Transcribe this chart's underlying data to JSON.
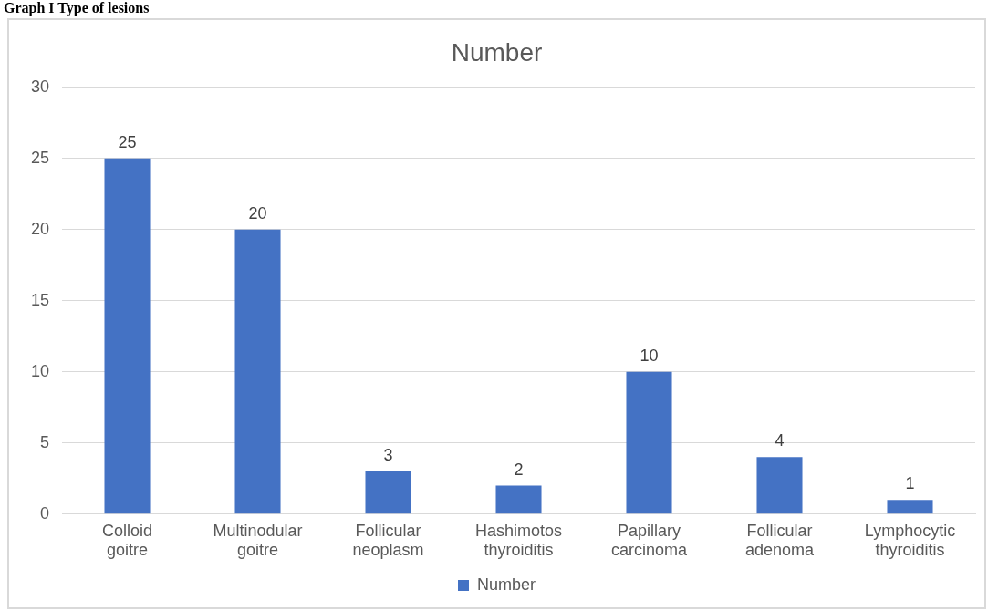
{
  "chart_data": {
    "type": "bar",
    "title": "Number",
    "annotations": [
      "Graph I Type of lesions"
    ],
    "categories": [
      "Colloid goitre",
      "Multinodular goitre",
      "Follicular neoplasm",
      "Hashimotos thyroiditis",
      "Papillary carcinoma",
      "Follicular adenoma",
      "Lymphocytic thyroiditis"
    ],
    "series": [
      {
        "name": "Number",
        "color": "#4472c4",
        "values": [
          25,
          20,
          3,
          2,
          10,
          4,
          1
        ]
      }
    ],
    "ylim": [
      0,
      30
    ],
    "yticks": [
      0,
      5,
      10,
      15,
      20,
      25,
      30
    ],
    "grid": "y",
    "legend": "bottom",
    "data_labels": true
  }
}
